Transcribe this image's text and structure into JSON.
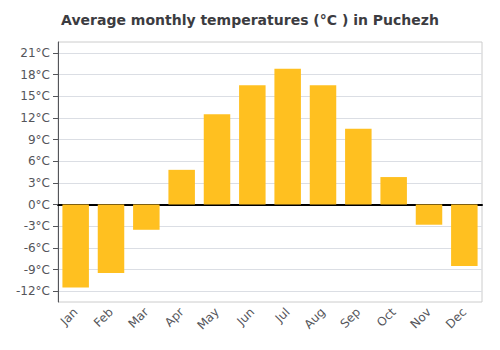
{
  "chart_data": {
    "type": "bar",
    "title": "Average monthly temperatures (°C ) in Puchezh",
    "categories": [
      "Jan",
      "Feb",
      "Mar",
      "Apr",
      "May",
      "Jun",
      "Jul",
      "Aug",
      "Sep",
      "Oct",
      "Nov",
      "Dec"
    ],
    "values": [
      -11.5,
      -9.5,
      -3.5,
      4.8,
      12.5,
      16.5,
      18.8,
      16.5,
      10.5,
      3.8,
      -2.8,
      -8.5
    ],
    "color": "#FFC020",
    "ylim": [
      -13.5,
      22.5
    ],
    "yticks": [
      {
        "value": -12,
        "label": "-12°C"
      },
      {
        "value": -9,
        "label": "-9°C"
      },
      {
        "value": -6,
        "label": "-6°C"
      },
      {
        "value": -3,
        "label": "-3°C"
      },
      {
        "value": 0,
        "label": "0°C"
      },
      {
        "value": 3,
        "label": "3°C"
      },
      {
        "value": 6,
        "label": "6°C"
      },
      {
        "value": 9,
        "label": "9°C"
      },
      {
        "value": 12,
        "label": "12°C"
      },
      {
        "value": 15,
        "label": "15°C"
      },
      {
        "value": 18,
        "label": "18°C"
      },
      {
        "value": 21,
        "label": "21°C"
      }
    ],
    "grid": true
  }
}
